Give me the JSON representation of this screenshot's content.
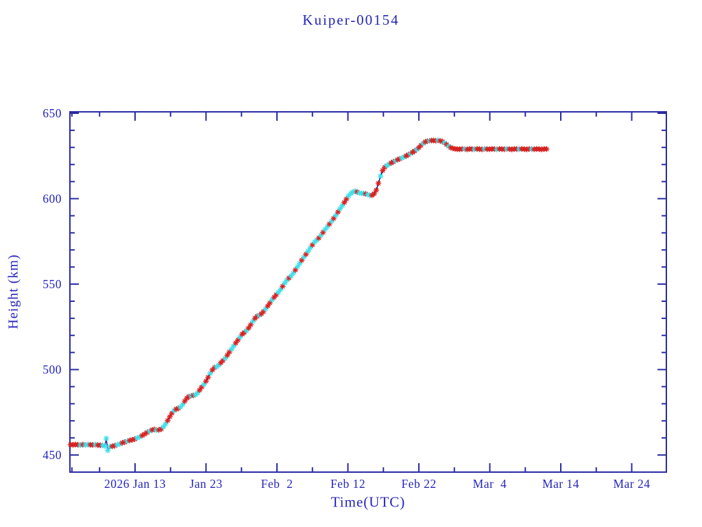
{
  "page": {
    "background": "#ffffff"
  },
  "chart_data": {
    "type": "line",
    "title": "Kuiper-00154",
    "xlabel": "Time(UTC)",
    "ylabel": "Height (km)",
    "legend": "none",
    "grid": "off",
    "colors": {
      "red": "#d62121",
      "cyan": "#3fe0e8",
      "line": "#00008b",
      "axis": "#2a2aa4",
      "text": "#2424bd"
    },
    "x_axis": {
      "unit": "day of year 2026",
      "range_days": [
        3.82,
        87.88
      ],
      "major_ticks": [
        {
          "day": 13,
          "label": "2026 Jan 13"
        },
        {
          "day": 23,
          "label": "Jan 23"
        },
        {
          "day": 33,
          "label": "Feb  2"
        },
        {
          "day": 43,
          "label": "Feb 12"
        },
        {
          "day": 53,
          "label": "Feb 22"
        },
        {
          "day": 63,
          "label": "Mar  4"
        },
        {
          "day": 73,
          "label": "Mar 14"
        },
        {
          "day": 83,
          "label": "Mar 24"
        }
      ],
      "minor_tick_days": [
        4.1,
        8,
        18,
        28,
        38,
        48,
        58,
        68,
        78
      ]
    },
    "y_axis": {
      "range": [
        440,
        650.8
      ],
      "major_ticks": [
        {
          "value": 450,
          "label": "450"
        },
        {
          "value": 500,
          "label": "500"
        },
        {
          "value": 550,
          "label": "550"
        },
        {
          "value": 600,
          "label": "600"
        },
        {
          "value": 650,
          "label": "650"
        }
      ],
      "minor_tick_values": [
        460,
        470,
        480,
        490,
        510,
        520,
        530,
        540,
        560,
        570,
        580,
        590,
        610,
        620,
        630,
        640
      ]
    },
    "marker_color_key": [
      "red",
      "cyan"
    ],
    "series": [
      {
        "name": "height",
        "marker": "asterisk",
        "points": [
          [
            3.9,
            456.1,
            0
          ],
          [
            4.25,
            455.9,
            0
          ],
          [
            4.6,
            456.2,
            0
          ],
          [
            4.95,
            456.0,
            0
          ],
          [
            5.3,
            455.8,
            1
          ],
          [
            5.65,
            456.1,
            0
          ],
          [
            6.0,
            455.9,
            1
          ],
          [
            6.35,
            456.2,
            1
          ],
          [
            6.7,
            456.0,
            0
          ],
          [
            7.05,
            455.9,
            0
          ],
          [
            7.4,
            456.1,
            1
          ],
          [
            7.75,
            455.8,
            0
          ],
          [
            8.1,
            455.7,
            0
          ],
          [
            8.45,
            455.6,
            1
          ],
          [
            8.75,
            455.3,
            1
          ],
          [
            8.95,
            459.7,
            1
          ],
          [
            9.15,
            452.7,
            1
          ],
          [
            9.45,
            454.9,
            1
          ],
          [
            9.8,
            455.1,
            0
          ],
          [
            10.15,
            455.5,
            0
          ],
          [
            10.5,
            456.0,
            1
          ],
          [
            10.85,
            456.5,
            1
          ],
          [
            11.2,
            457.1,
            0
          ],
          [
            11.55,
            457.6,
            0
          ],
          [
            11.9,
            458.1,
            1
          ],
          [
            12.25,
            458.5,
            0
          ],
          [
            12.6,
            458.9,
            0
          ],
          [
            12.95,
            459.3,
            0
          ],
          [
            13.3,
            459.9,
            1
          ],
          [
            13.65,
            460.6,
            1
          ],
          [
            14.0,
            461.4,
            0
          ],
          [
            14.35,
            462.3,
            0
          ],
          [
            14.7,
            463.2,
            0
          ],
          [
            15.05,
            464.0,
            1
          ],
          [
            15.4,
            464.7,
            0
          ],
          [
            15.7,
            465.0,
            0
          ],
          [
            16.0,
            464.5,
            1
          ],
          [
            16.35,
            464.7,
            0
          ],
          [
            16.7,
            465.2,
            0
          ],
          [
            17.0,
            466.5,
            1
          ],
          [
            17.3,
            468.2,
            1
          ],
          [
            17.6,
            470.2,
            0
          ],
          [
            17.9,
            472.4,
            0
          ],
          [
            18.2,
            474.5,
            0
          ],
          [
            18.5,
            476.0,
            1
          ],
          [
            18.8,
            476.8,
            0
          ],
          [
            19.1,
            477.3,
            0
          ],
          [
            19.4,
            478.0,
            1
          ],
          [
            19.7,
            479.5,
            1
          ],
          [
            20.0,
            481.5,
            0
          ],
          [
            20.3,
            483.3,
            0
          ],
          [
            20.6,
            484.2,
            0
          ],
          [
            20.9,
            484.6,
            1
          ],
          [
            21.2,
            484.9,
            0
          ],
          [
            21.5,
            485.2,
            1
          ],
          [
            21.8,
            486.3,
            1
          ],
          [
            22.1,
            488.0,
            0
          ],
          [
            22.4,
            489.8,
            0
          ],
          [
            22.7,
            491.3,
            1
          ],
          [
            23.0,
            493.2,
            0
          ],
          [
            23.3,
            495.5,
            0
          ],
          [
            23.6,
            497.8,
            1
          ],
          [
            23.9,
            499.8,
            0
          ],
          [
            24.2,
            501.2,
            0
          ],
          [
            24.5,
            501.6,
            1
          ],
          [
            24.8,
            502.6,
            1
          ],
          [
            25.1,
            504.0,
            0
          ],
          [
            25.4,
            505.3,
            0
          ],
          [
            25.7,
            506.6,
            1
          ],
          [
            26.0,
            508.4,
            0
          ],
          [
            26.3,
            510.3,
            0
          ],
          [
            26.6,
            512.0,
            1
          ],
          [
            26.9,
            513.8,
            1
          ],
          [
            27.2,
            515.6,
            0
          ],
          [
            27.5,
            517.3,
            0
          ],
          [
            27.8,
            519.0,
            1
          ],
          [
            28.1,
            520.7,
            0
          ],
          [
            28.4,
            521.7,
            0
          ],
          [
            28.7,
            522.8,
            1
          ],
          [
            29.0,
            524.3,
            0
          ],
          [
            29.3,
            526.2,
            0
          ],
          [
            29.6,
            528.2,
            1
          ],
          [
            29.9,
            530.0,
            0
          ],
          [
            30.2,
            531.2,
            0
          ],
          [
            30.5,
            531.8,
            1
          ],
          [
            30.8,
            532.6,
            0
          ],
          [
            31.1,
            533.9,
            0
          ],
          [
            31.4,
            535.5,
            1
          ],
          [
            31.7,
            537.2,
            0
          ],
          [
            32.0,
            539.0,
            0
          ],
          [
            32.3,
            540.8,
            1
          ],
          [
            32.6,
            542.3,
            0
          ],
          [
            32.9,
            543.8,
            0
          ],
          [
            33.2,
            545.2,
            1
          ],
          [
            33.5,
            546.8,
            1
          ],
          [
            33.8,
            548.7,
            0
          ],
          [
            34.1,
            550.6,
            1
          ],
          [
            34.4,
            552.3,
            1
          ],
          [
            34.7,
            553.6,
            0
          ],
          [
            35.0,
            554.8,
            1
          ],
          [
            35.3,
            556.4,
            1
          ],
          [
            35.6,
            558.3,
            0
          ],
          [
            35.9,
            560.2,
            1
          ],
          [
            36.2,
            562.1,
            1
          ],
          [
            36.5,
            564.0,
            0
          ],
          [
            36.8,
            565.8,
            1
          ],
          [
            37.1,
            567.5,
            0
          ],
          [
            37.4,
            569.3,
            1
          ],
          [
            37.7,
            571.2,
            1
          ],
          [
            38.0,
            573.0,
            0
          ],
          [
            38.3,
            574.6,
            1
          ],
          [
            38.6,
            575.8,
            1
          ],
          [
            38.9,
            577.0,
            0
          ],
          [
            39.2,
            578.6,
            1
          ],
          [
            39.5,
            580.3,
            0
          ],
          [
            39.8,
            582.0,
            1
          ],
          [
            40.1,
            583.6,
            1
          ],
          [
            40.4,
            585.2,
            0
          ],
          [
            40.7,
            586.8,
            1
          ],
          [
            41.0,
            588.5,
            0
          ],
          [
            41.3,
            590.3,
            1
          ],
          [
            41.6,
            592.2,
            0
          ],
          [
            41.9,
            594.1,
            1
          ],
          [
            42.2,
            595.9,
            1
          ],
          [
            42.5,
            597.8,
            0
          ],
          [
            42.8,
            599.8,
            0
          ],
          [
            43.1,
            601.6,
            1
          ],
          [
            43.4,
            603.0,
            1
          ],
          [
            43.7,
            603.9,
            1
          ],
          [
            44.0,
            604.4,
            1
          ],
          [
            44.3,
            603.9,
            0
          ],
          [
            44.6,
            603.3,
            1
          ],
          [
            44.9,
            603.1,
            1
          ],
          [
            45.2,
            603.0,
            1
          ],
          [
            45.5,
            602.8,
            0
          ],
          [
            45.8,
            602.4,
            1
          ],
          [
            46.1,
            601.9,
            1
          ],
          [
            46.4,
            602.0,
            0
          ],
          [
            46.7,
            602.9,
            0
          ],
          [
            47.0,
            605.0,
            0
          ],
          [
            47.3,
            609.0,
            0
          ],
          [
            47.6,
            613.2,
            1
          ],
          [
            47.9,
            616.5,
            0
          ],
          [
            48.2,
            618.4,
            0
          ],
          [
            48.5,
            619.4,
            1
          ],
          [
            48.8,
            620.2,
            1
          ],
          [
            49.1,
            620.9,
            0
          ],
          [
            49.4,
            621.6,
            0
          ],
          [
            49.7,
            622.2,
            1
          ],
          [
            50.0,
            622.8,
            0
          ],
          [
            50.3,
            623.3,
            0
          ],
          [
            50.6,
            623.8,
            1
          ],
          [
            50.9,
            624.4,
            1
          ],
          [
            51.2,
            625.0,
            0
          ],
          [
            51.5,
            625.7,
            0
          ],
          [
            51.8,
            626.4,
            1
          ],
          [
            52.1,
            627.1,
            0
          ],
          [
            52.4,
            627.9,
            0
          ],
          [
            52.7,
            628.8,
            1
          ],
          [
            53.0,
            629.9,
            0
          ],
          [
            53.3,
            631.2,
            0
          ],
          [
            53.6,
            632.4,
            1
          ],
          [
            53.9,
            633.2,
            0
          ],
          [
            54.2,
            633.7,
            0
          ],
          [
            54.5,
            633.9,
            1
          ],
          [
            54.8,
            634.0,
            0
          ],
          [
            55.1,
            634.0,
            0
          ],
          [
            55.4,
            633.9,
            0
          ],
          [
            55.7,
            634.1,
            1
          ],
          [
            56.0,
            633.8,
            0
          ],
          [
            56.3,
            633.4,
            0
          ],
          [
            56.6,
            632.7,
            1
          ],
          [
            56.9,
            631.7,
            0
          ],
          [
            57.2,
            630.6,
            1
          ],
          [
            57.5,
            629.9,
            0
          ],
          [
            57.8,
            629.4,
            0
          ],
          [
            58.1,
            629.1,
            0
          ],
          [
            58.4,
            629.0,
            0
          ],
          [
            58.75,
            628.9,
            0
          ],
          [
            59.1,
            629.1,
            0
          ],
          [
            59.45,
            629.0,
            1
          ],
          [
            59.8,
            628.8,
            0
          ],
          [
            60.15,
            629.1,
            0
          ],
          [
            60.5,
            629.0,
            0
          ],
          [
            60.85,
            628.9,
            1
          ],
          [
            61.2,
            629.1,
            0
          ],
          [
            61.55,
            629.0,
            0
          ],
          [
            61.9,
            628.8,
            0
          ],
          [
            62.25,
            629.1,
            1
          ],
          [
            62.6,
            629.0,
            0
          ],
          [
            62.95,
            628.9,
            0
          ],
          [
            63.3,
            629.1,
            0
          ],
          [
            63.65,
            629.0,
            0
          ],
          [
            64.0,
            628.8,
            1
          ],
          [
            64.35,
            629.1,
            0
          ],
          [
            64.7,
            629.0,
            0
          ],
          [
            65.05,
            628.9,
            0
          ],
          [
            65.4,
            629.1,
            1
          ],
          [
            65.75,
            629.0,
            0
          ],
          [
            66.1,
            628.8,
            0
          ],
          [
            66.45,
            629.1,
            0
          ],
          [
            66.8,
            629.0,
            0
          ],
          [
            67.15,
            628.9,
            1
          ],
          [
            67.5,
            629.1,
            0
          ],
          [
            67.85,
            629.0,
            0
          ],
          [
            68.2,
            628.8,
            0
          ],
          [
            68.55,
            629.1,
            0
          ],
          [
            68.9,
            629.0,
            1
          ],
          [
            69.25,
            628.9,
            0
          ],
          [
            69.6,
            629.1,
            0
          ],
          [
            69.95,
            629.0,
            0
          ],
          [
            70.3,
            628.8,
            0
          ],
          [
            70.65,
            629.1,
            0
          ],
          [
            71.0,
            629.0,
            0
          ]
        ]
      }
    ]
  }
}
